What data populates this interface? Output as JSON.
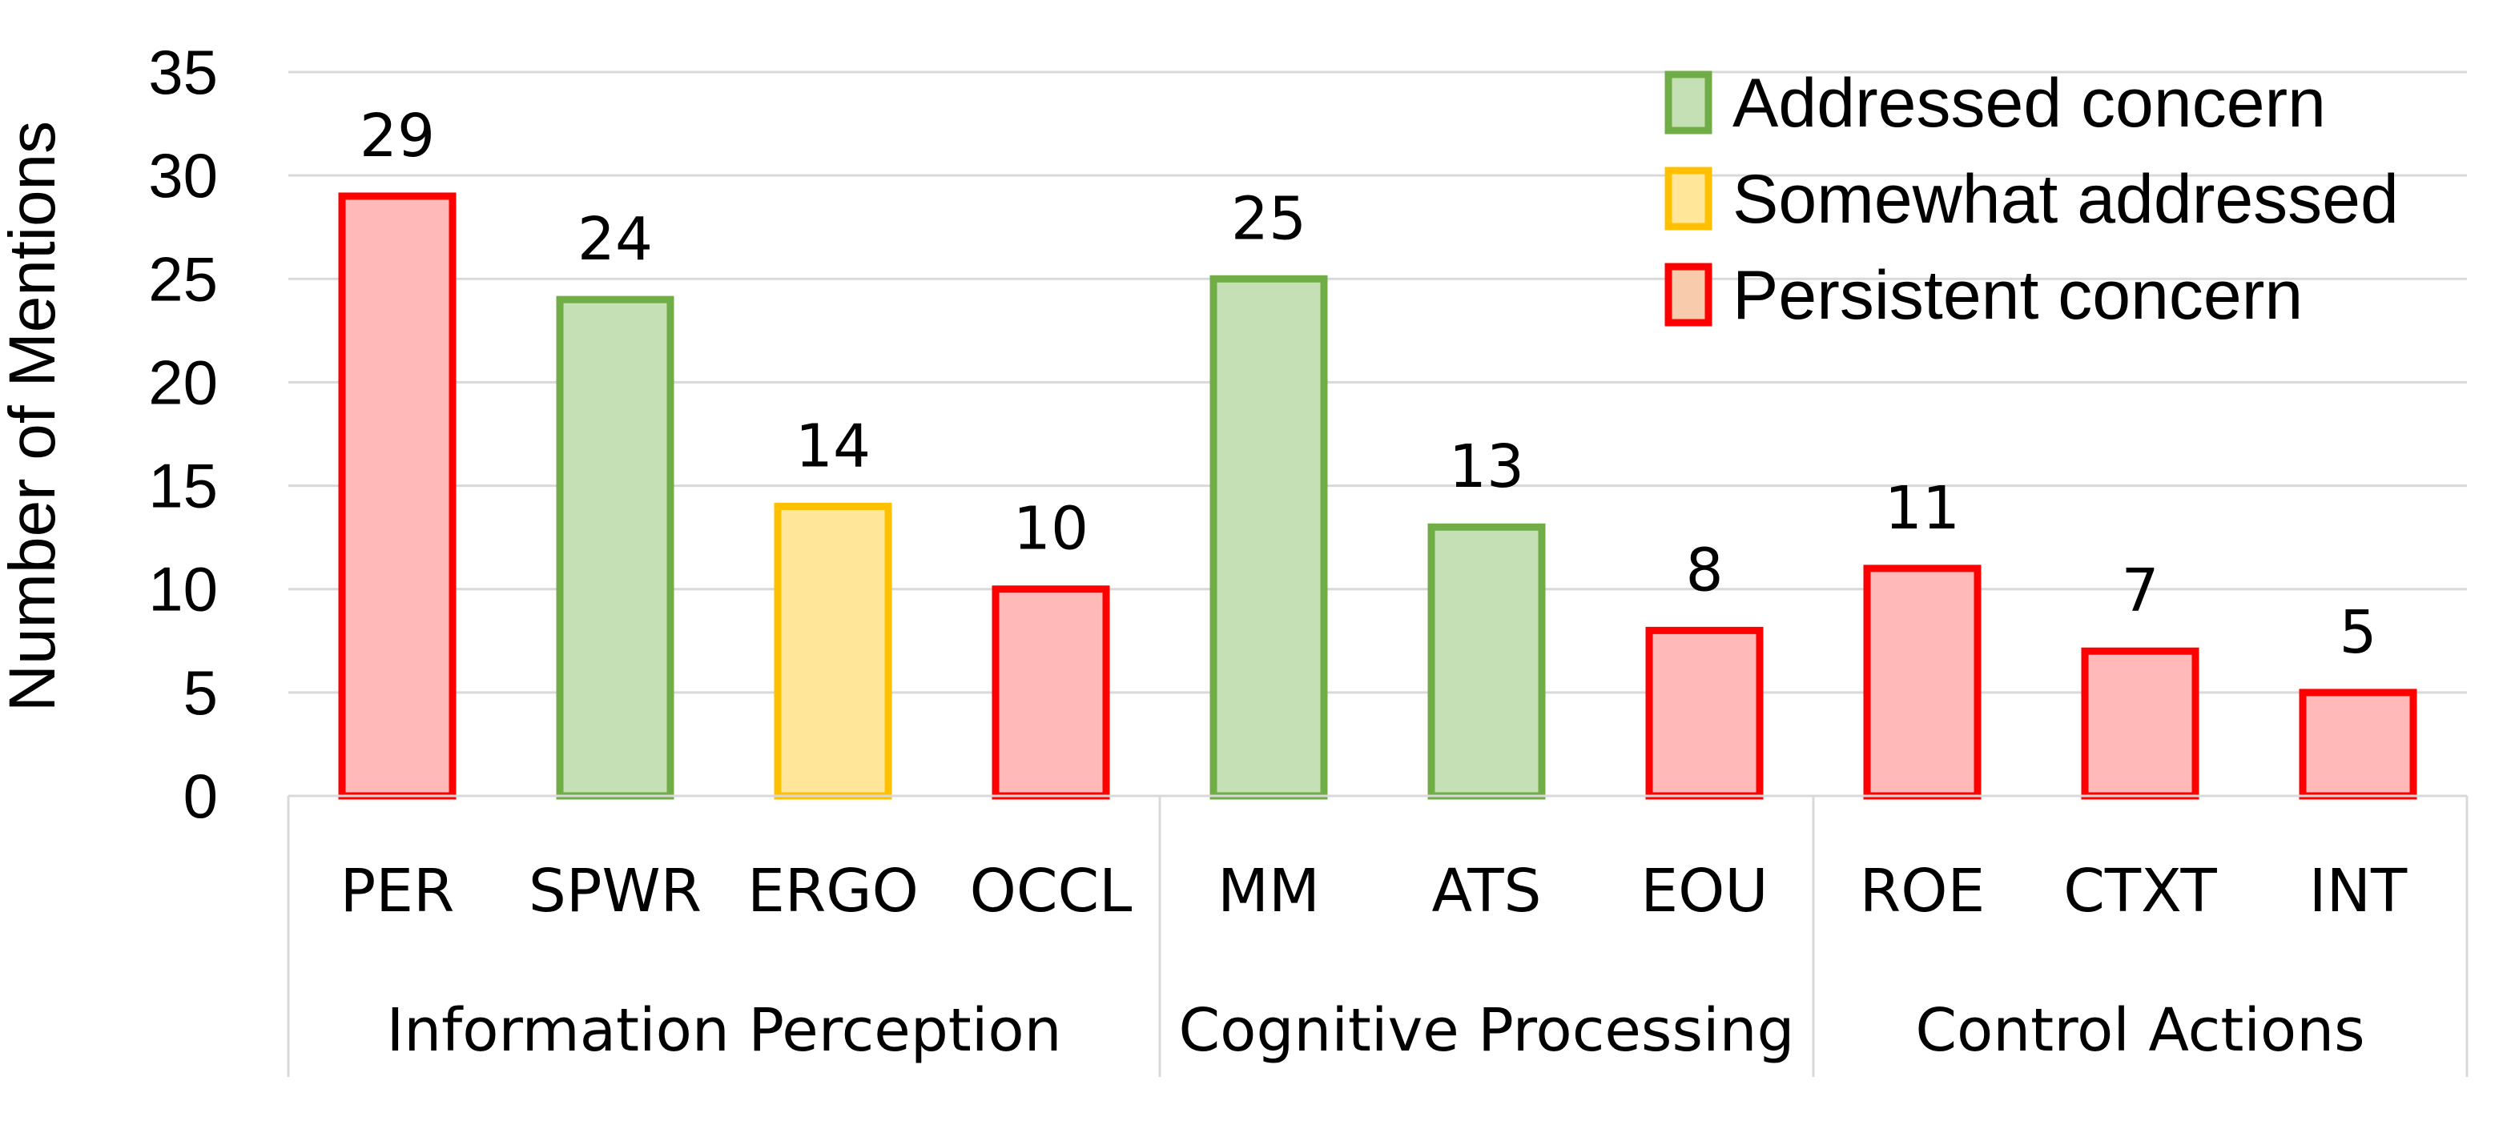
{
  "chart_data": {
    "type": "bar",
    "title": "",
    "xlabel": "",
    "ylabel": "Number of Mentions",
    "ylim": [
      0,
      35
    ],
    "yticks": [
      0,
      5,
      10,
      15,
      20,
      25,
      30,
      35
    ],
    "grid": true,
    "legend_position": "top-right",
    "legend": [
      {
        "key": "addressed",
        "label": "Addressed concern"
      },
      {
        "key": "somewhat",
        "label": "Somewhat addressed"
      },
      {
        "key": "persistent",
        "label": "Persistent concern"
      }
    ],
    "styles": {
      "addressed": {
        "fill": "#c5e0b4",
        "stroke": "#70ad47"
      },
      "somewhat": {
        "fill": "#ffe699",
        "stroke": "#ffc000"
      },
      "persistent": {
        "fill": "#ffb9b9",
        "stroke": "#ff0000"
      }
    },
    "legend_swatch_fill_persistent": "#f8cbad",
    "groups": [
      {
        "name": "Information Perception",
        "categories": [
          "PER",
          "SPWR",
          "ERGO",
          "OCCL"
        ]
      },
      {
        "name": "Cognitive Processing",
        "categories": [
          "MM",
          "ATS",
          "EOU"
        ]
      },
      {
        "name": "Control Actions",
        "categories": [
          "ROE",
          "CTXT",
          "INT"
        ]
      }
    ],
    "categories": [
      "PER",
      "SPWR",
      "ERGO",
      "OCCL",
      "MM",
      "ATS",
      "EOU",
      "ROE",
      "CTXT",
      "INT"
    ],
    "values": [
      29,
      24,
      14,
      10,
      25,
      13,
      8,
      11,
      7,
      5
    ],
    "status": [
      "persistent",
      "addressed",
      "somewhat",
      "persistent",
      "addressed",
      "addressed",
      "persistent",
      "persistent",
      "persistent",
      "persistent"
    ]
  }
}
